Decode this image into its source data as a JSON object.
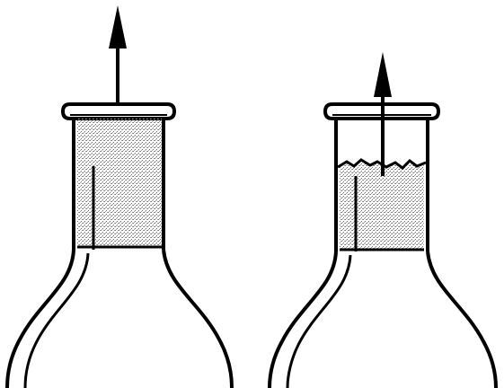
{
  "figure": {
    "background_color": "#ffffff",
    "ink_color": "#000000",
    "stipple_color": "#6e6e6e",
    "panels": [
      {
        "name": "bottle-full-plug",
        "arrow_direction": "up",
        "plug_fill_fraction": 1.0,
        "plug_top_edge": "flat"
      },
      {
        "name": "bottle-partial-plug",
        "arrow_direction": "up",
        "plug_fill_fraction": 0.75,
        "plug_top_edge": "torn"
      }
    ]
  }
}
